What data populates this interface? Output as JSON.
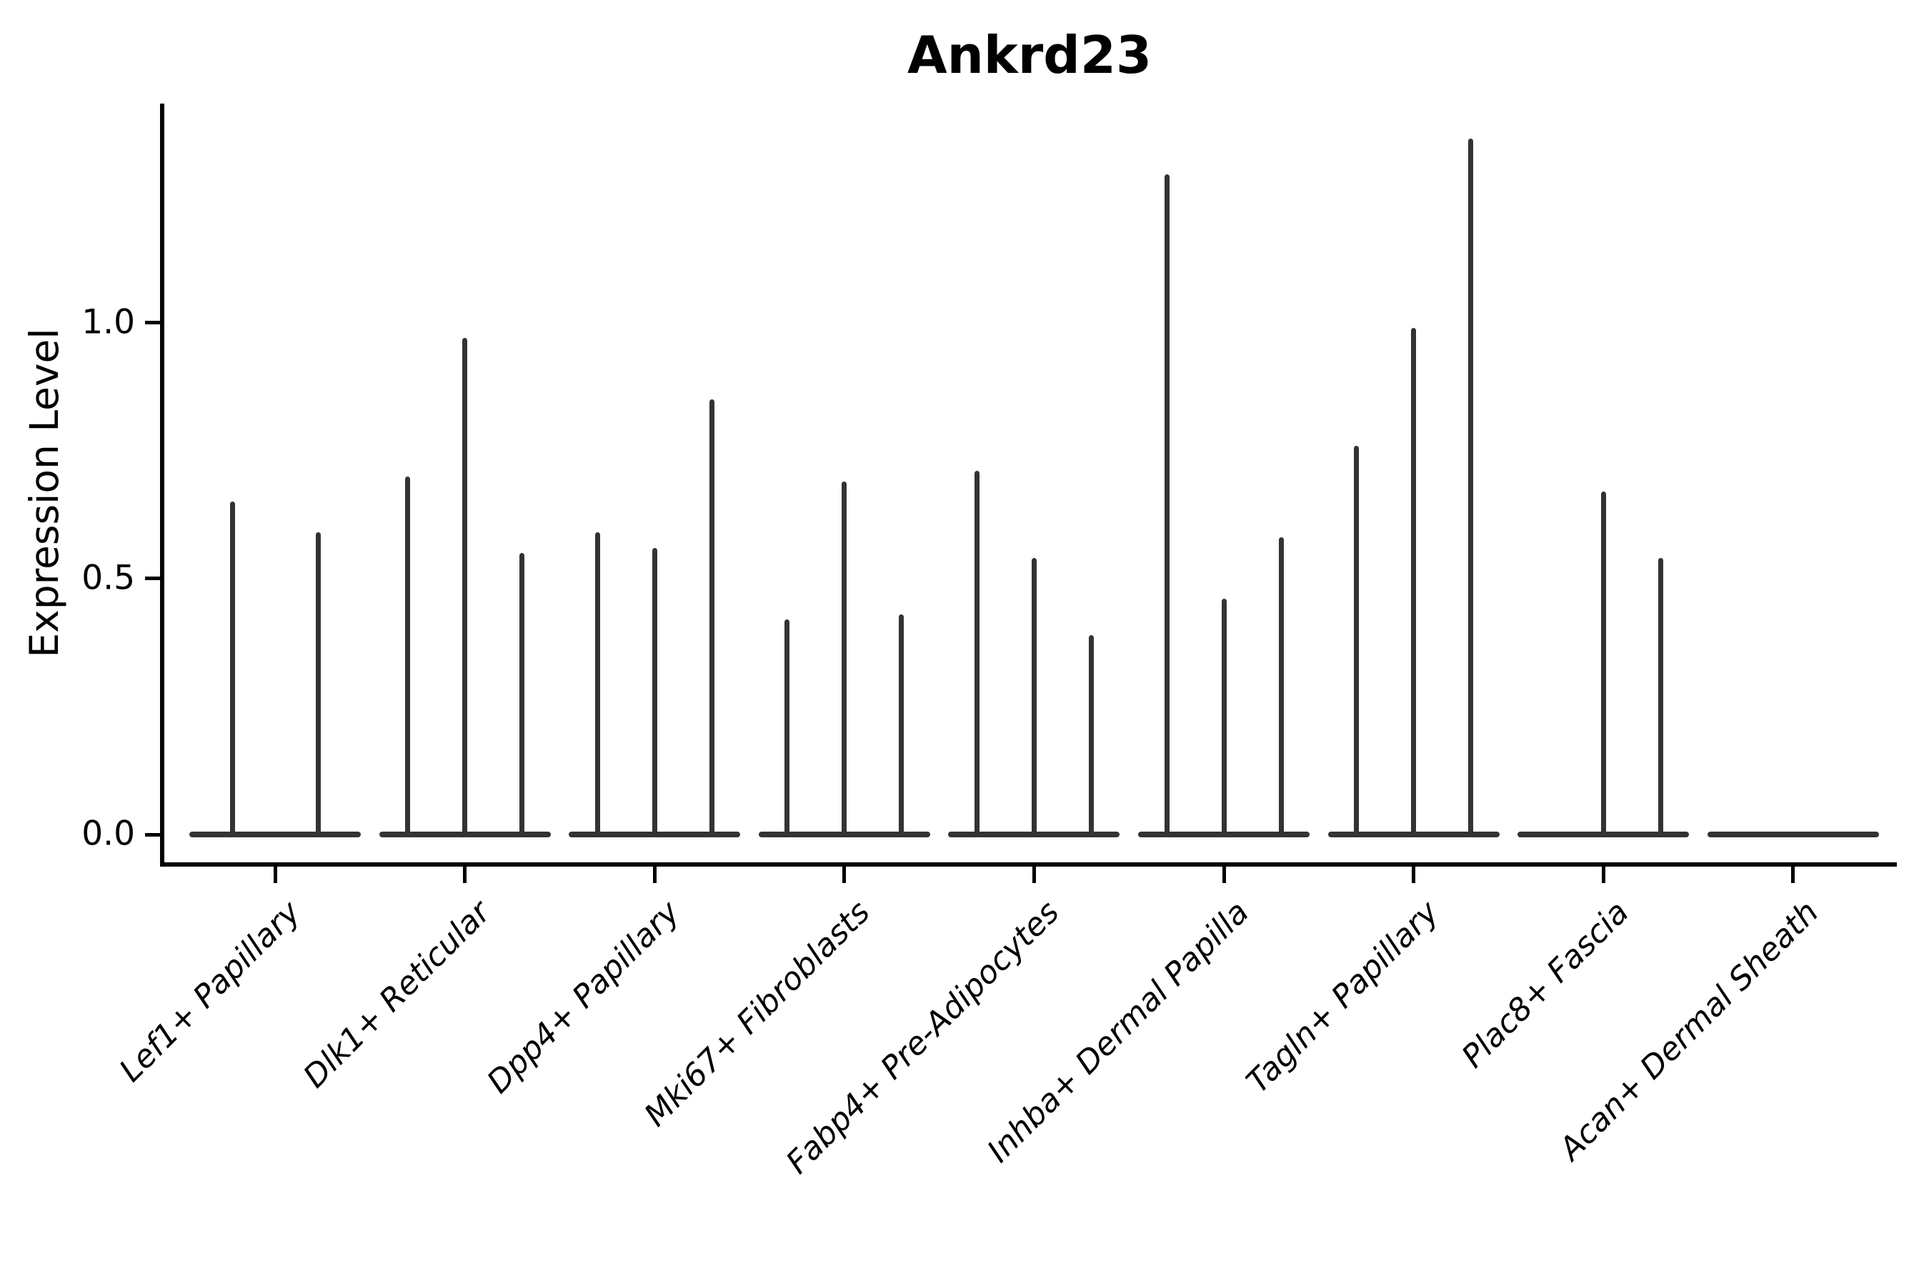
{
  "chart_data": {
    "type": "violin",
    "title": "Ankrd23",
    "ylabel": "Expression Level",
    "xlabel": "",
    "ylim": [
      0,
      1.43
    ],
    "yticks": [
      0.0,
      0.5,
      1.0
    ],
    "ytick_labels": [
      "0.0",
      "0.5",
      "1.0"
    ],
    "grid": false,
    "legend": "none",
    "categories": [
      "Lef1+ Papillary",
      "Dlk1+ Reticular",
      "Dpp4+ Papillary",
      "Mki67+ Fibroblasts",
      "Fabp4+ Pre-Adipocytes",
      "Inhba+ Dermal Papilla",
      "Tagln+ Papillary",
      "Plac8+ Fascia",
      "Acan+ Dermal Sheath"
    ],
    "groups": [
      {
        "label": "Lef1+ Papillary",
        "violin_peaks": [
          0.65,
          0.59
        ]
      },
      {
        "label": "Dlk1+ Reticular",
        "violin_peaks": [
          0.7,
          0.97,
          0.55
        ]
      },
      {
        "label": "Dpp4+ Papillary",
        "violin_peaks": [
          0.59,
          0.56,
          0.85
        ]
      },
      {
        "label": "Mki67+ Fibroblasts",
        "violin_peaks": [
          0.42,
          0.69,
          0.43
        ]
      },
      {
        "label": "Fabp4+ Pre-Adipocytes",
        "violin_peaks": [
          0.71,
          0.54,
          0.39
        ]
      },
      {
        "label": "Inhba+ Dermal Papilla",
        "violin_peaks": [
          1.29,
          0.46,
          0.58
        ]
      },
      {
        "label": "Tagln+ Papillary",
        "violin_peaks": [
          0.76,
          0.99,
          1.36
        ]
      },
      {
        "label": "Plac8+ Fascia",
        "violin_peaks": [
          0.0,
          0.67,
          0.54
        ]
      },
      {
        "label": "Acan+ Dermal Sheath",
        "violin_peaks": [
          0.0,
          0.0,
          0.0
        ]
      }
    ],
    "style": {
      "violin_color": "#333333",
      "axis_color": "#000000",
      "background": "#ffffff"
    }
  }
}
